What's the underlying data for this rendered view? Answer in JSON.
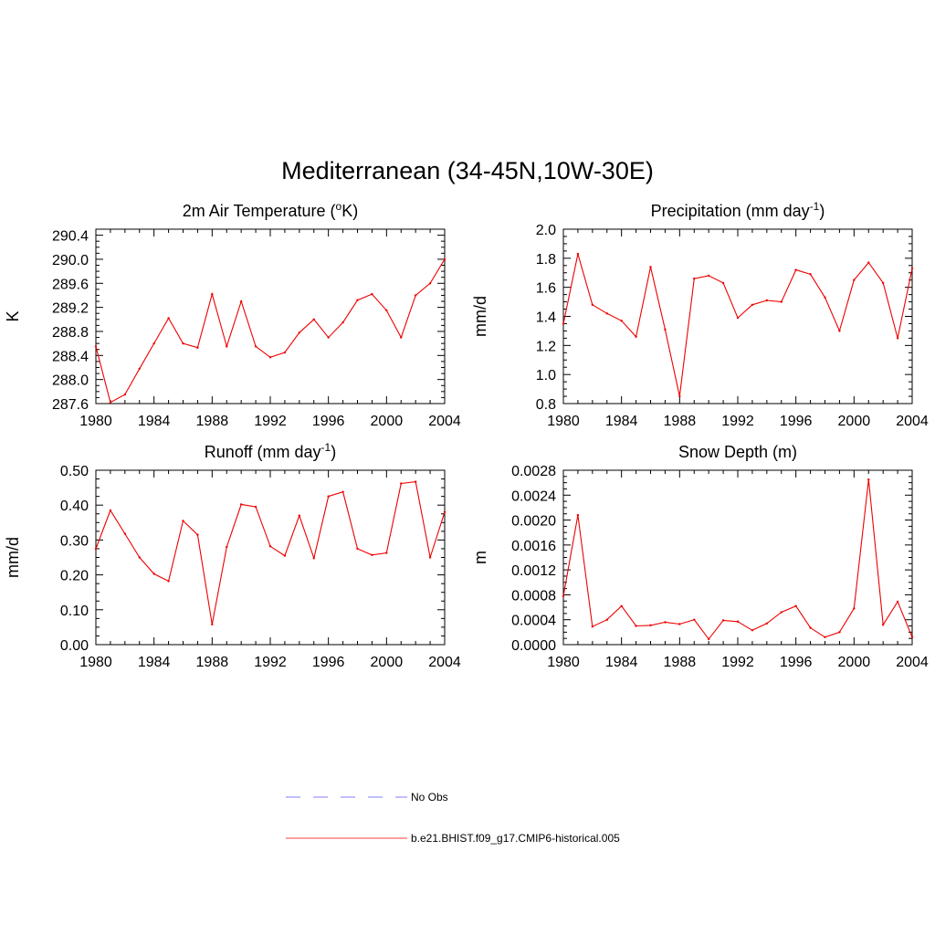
{
  "page": {
    "title": "Mediterranean (34-45N,10W-30E)"
  },
  "legend": {
    "placement": "bottom-center",
    "items": [
      {
        "label": "No Obs",
        "color": "#9999ff",
        "dashed": true
      },
      {
        "label": "b.e21.BHIST.f09_g17.CMIP6-historical.005",
        "color": "#ff6666",
        "dashed": false
      }
    ]
  },
  "colors": {
    "series": "#ee0000",
    "axes": "#000000"
  },
  "chart_data": [
    {
      "type": "line",
      "title": "2m Air Temperature (",
      "title_sup": "o",
      "title_tail": "K)",
      "ylabel": "K",
      "xlabel": "",
      "xlim": [
        1980,
        2004
      ],
      "ylim": [
        287.6,
        290.5
      ],
      "xticks": [
        1980,
        1984,
        1988,
        1992,
        1996,
        2000,
        2004
      ],
      "yticks": [
        287.6,
        288.0,
        288.4,
        288.8,
        289.2,
        289.6,
        290.0,
        290.4
      ],
      "ytick_labels": [
        "287.6",
        "288.0",
        "288.4",
        "288.8",
        "289.2",
        "289.6",
        "290.0",
        "290.4"
      ],
      "x": [
        1980,
        1981,
        1982,
        1983,
        1984,
        1985,
        1986,
        1987,
        1988,
        1989,
        1990,
        1991,
        1992,
        1993,
        1994,
        1995,
        1996,
        1997,
        1998,
        1999,
        2000,
        2001,
        2002,
        2003,
        2004
      ],
      "series": [
        {
          "name": "b.e21.BHIST.f09_g17.CMIP6-historical.005",
          "values": [
            288.55,
            287.62,
            287.75,
            288.18,
            288.6,
            289.02,
            288.6,
            288.53,
            289.42,
            288.55,
            289.3,
            288.55,
            288.37,
            288.45,
            288.78,
            289.0,
            288.7,
            288.95,
            289.32,
            289.42,
            289.15,
            288.7,
            289.4,
            289.6,
            290.0
          ]
        }
      ]
    },
    {
      "type": "line",
      "title": "Precipitation (mm day",
      "title_sup": "-1",
      "title_tail": ")",
      "ylabel": "mm/d",
      "xlabel": "",
      "xlim": [
        1980,
        2004
      ],
      "ylim": [
        0.8,
        2.0
      ],
      "xticks": [
        1980,
        1984,
        1988,
        1992,
        1996,
        2000,
        2004
      ],
      "yticks": [
        0.8,
        1.0,
        1.2,
        1.4,
        1.6,
        1.8,
        2.0
      ],
      "ytick_labels": [
        "0.8",
        "1.0",
        "1.2",
        "1.4",
        "1.6",
        "1.8",
        "2.0"
      ],
      "x": [
        1980,
        1981,
        1982,
        1983,
        1984,
        1985,
        1986,
        1987,
        1988,
        1989,
        1990,
        1991,
        1992,
        1993,
        1994,
        1995,
        1996,
        1997,
        1998,
        1999,
        2000,
        2001,
        2002,
        2003,
        2004
      ],
      "series": [
        {
          "name": "b.e21.BHIST.f09_g17.CMIP6-historical.005",
          "values": [
            1.35,
            1.83,
            1.48,
            1.42,
            1.37,
            1.26,
            1.74,
            1.31,
            0.85,
            1.66,
            1.68,
            1.63,
            1.39,
            1.48,
            1.51,
            1.5,
            1.72,
            1.69,
            1.53,
            1.3,
            1.65,
            1.77,
            1.63,
            1.25,
            1.73
          ]
        }
      ]
    },
    {
      "type": "line",
      "title": "Runoff (mm day",
      "title_sup": "-1",
      "title_tail": ")",
      "ylabel": "mm/d",
      "xlabel": "",
      "xlim": [
        1980,
        2004
      ],
      "ylim": [
        0.0,
        0.5
      ],
      "xticks": [
        1980,
        1984,
        1988,
        1992,
        1996,
        2000,
        2004
      ],
      "yticks": [
        0.0,
        0.1,
        0.2,
        0.3,
        0.4,
        0.5
      ],
      "ytick_labels": [
        "0.00",
        "0.10",
        "0.20",
        "0.30",
        "0.40",
        "0.50"
      ],
      "x": [
        1980,
        1981,
        1982,
        1983,
        1984,
        1985,
        1986,
        1987,
        1988,
        1989,
        1990,
        1991,
        1992,
        1993,
        1994,
        1995,
        1996,
        1997,
        1998,
        1999,
        2000,
        2001,
        2002,
        2003,
        2004
      ],
      "series": [
        {
          "name": "b.e21.BHIST.f09_g17.CMIP6-historical.005",
          "values": [
            0.275,
            0.385,
            0.318,
            0.25,
            0.203,
            0.182,
            0.355,
            0.315,
            0.058,
            0.28,
            0.402,
            0.395,
            0.282,
            0.255,
            0.37,
            0.248,
            0.425,
            0.438,
            0.275,
            0.257,
            0.263,
            0.462,
            0.467,
            0.25,
            0.38
          ]
        }
      ]
    },
    {
      "type": "line",
      "title": "Snow Depth (m)",
      "title_sup": "",
      "title_tail": "",
      "ylabel": "m",
      "xlabel": "",
      "xlim": [
        1980,
        2004
      ],
      "ylim": [
        0.0,
        0.0028
      ],
      "xticks": [
        1980,
        1984,
        1988,
        1992,
        1996,
        2000,
        2004
      ],
      "yticks": [
        0.0,
        0.0004,
        0.0008,
        0.0012,
        0.0016,
        0.002,
        0.0024,
        0.0028
      ],
      "ytick_labels": [
        "0.0000",
        "0.0004",
        "0.0008",
        "0.0012",
        "0.0016",
        "0.0020",
        "0.0024",
        "0.0028"
      ],
      "x": [
        1980,
        1981,
        1982,
        1983,
        1984,
        1985,
        1986,
        1987,
        1988,
        1989,
        1990,
        1991,
        1992,
        1993,
        1994,
        1995,
        1996,
        1997,
        1998,
        1999,
        2000,
        2001,
        2002,
        2003,
        2004
      ],
      "series": [
        {
          "name": "b.e21.BHIST.f09_g17.CMIP6-historical.005",
          "values": [
            0.00078,
            0.00208,
            0.00029,
            0.0004,
            0.00062,
            0.0003,
            0.00031,
            0.00036,
            0.00033,
            0.0004,
            9e-05,
            0.00039,
            0.00037,
            0.00023,
            0.00034,
            0.00052,
            0.00062,
            0.00027,
            0.00012,
            0.0002,
            0.00058,
            0.00265,
            0.00032,
            0.00069,
            0.00012
          ]
        }
      ]
    }
  ]
}
